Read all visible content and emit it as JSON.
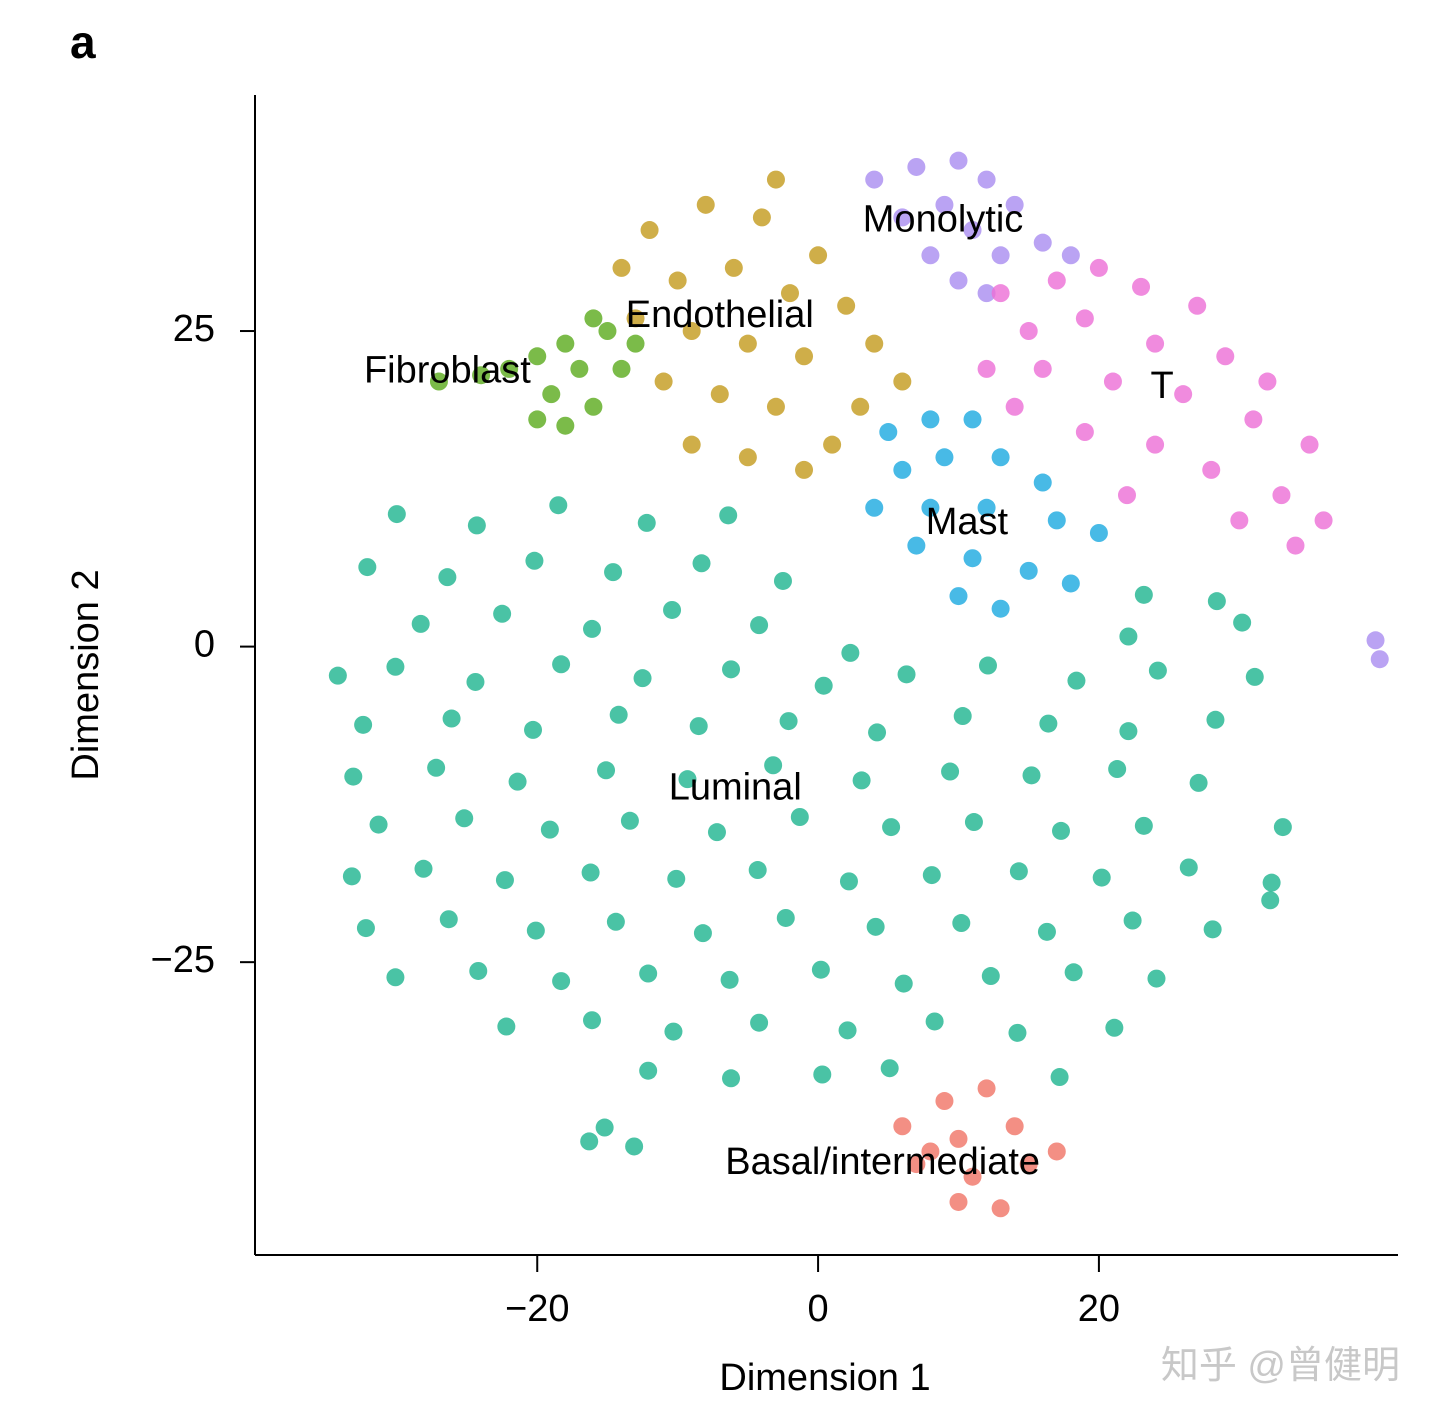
{
  "chart_data": {
    "type": "scatter",
    "panel_label": "a",
    "xlabel": "Dimension 1",
    "ylabel": "Dimension 2",
    "watermark": "知乎 @曾健明",
    "xlim": [
      -40.1,
      41.3
    ],
    "ylim": [
      -48.2,
      43.7
    ],
    "xticks": [
      {
        "value": -20,
        "label": "−20"
      },
      0,
      20
    ],
    "yticks": [
      {
        "value": -25,
        "label": "−25"
      },
      0,
      25
    ],
    "series": [
      {
        "name": "Luminal",
        "color": "#1db48e",
        "label_x": -5.9,
        "label_y": -11.3,
        "x": [
          -30,
          -24.3,
          -18.5,
          -12.2,
          -6.4,
          -32.1,
          -26.4,
          -20.2,
          -14.6,
          -8.3,
          -2.5,
          23.2,
          28.4,
          -28.3,
          -22.5,
          -16.1,
          -10.4,
          -4.2,
          2.3,
          22.1,
          30.2,
          -34.2,
          -30.1,
          -24.4,
          -18.3,
          -12.5,
          -6.2,
          0.4,
          6.3,
          12.1,
          18.4,
          24.2,
          31.1,
          -32.4,
          -26.1,
          -20.3,
          -14.2,
          -8.5,
          -2.1,
          4.2,
          10.3,
          16.4,
          22.1,
          28.3,
          -33.1,
          -27.2,
          -21.4,
          -15.1,
          -9.3,
          -3.2,
          3.1,
          9.4,
          15.2,
          21.3,
          27.1,
          -31.3,
          -25.2,
          -19.1,
          -13.4,
          -7.2,
          -1.3,
          5.2,
          11.1,
          17.3,
          23.2,
          -33.2,
          -28.1,
          -22.3,
          -16.2,
          -10.1,
          -4.3,
          2.2,
          8.1,
          14.3,
          20.2,
          26.4,
          32.3,
          -32.2,
          -26.3,
          -20.1,
          -14.4,
          -8.2,
          -2.3,
          4.1,
          10.2,
          16.3,
          22.4,
          28.1,
          -30.1,
          -24.2,
          -18.3,
          -12.1,
          -6.3,
          0.2,
          6.1,
          12.3,
          18.2,
          24.1,
          -22.2,
          -16.1,
          -10.3,
          -4.2,
          2.1,
          8.3,
          14.2,
          21.1,
          -12.1,
          -6.2,
          0.3,
          5.1,
          17.2,
          -15.2,
          -13.1,
          -16.3,
          33.1,
          32.2
        ],
        "y": [
          10.5,
          9.6,
          11.2,
          9.8,
          10.4,
          6.3,
          5.5,
          6.8,
          5.9,
          6.6,
          5.2,
          4.1,
          3.6,
          1.8,
          2.6,
          1.4,
          2.9,
          1.7,
          -0.5,
          0.8,
          1.9,
          -2.3,
          -1.6,
          -2.8,
          -1.4,
          -2.5,
          -1.8,
          -3.1,
          -2.2,
          -1.5,
          -2.7,
          -1.9,
          -2.4,
          -6.2,
          -5.7,
          -6.6,
          -5.4,
          -6.3,
          -5.9,
          -6.8,
          -5.5,
          -6.1,
          -6.7,
          -5.8,
          -10.3,
          -9.6,
          -10.7,
          -9.8,
          -10.5,
          -9.4,
          -10.6,
          -9.9,
          -10.2,
          -9.7,
          -10.8,
          -14.1,
          -13.6,
          -14.5,
          -13.8,
          -14.7,
          -13.5,
          -14.3,
          -13.9,
          -14.6,
          -14.2,
          -18.2,
          -17.6,
          -18.5,
          -17.9,
          -18.4,
          -17.7,
          -18.6,
          -18.1,
          -17.8,
          -18.3,
          -17.5,
          -18.7,
          -22.3,
          -21.6,
          -22.5,
          -21.8,
          -22.7,
          -21.5,
          -22.2,
          -21.9,
          -22.6,
          -21.7,
          -22.4,
          -26.2,
          -25.7,
          -26.5,
          -25.9,
          -26.4,
          -25.6,
          -26.7,
          -26.1,
          -25.8,
          -26.3,
          -30.1,
          -29.6,
          -30.5,
          -29.8,
          -30.4,
          -29.7,
          -30.6,
          -30.2,
          -33.6,
          -34.2,
          -33.9,
          -33.4,
          -34.1,
          -38.1,
          -39.6,
          -39.2,
          -14.3,
          -20.1
        ]
      },
      {
        "name": "Endothelial",
        "color": "#c39a1c",
        "label_x": -7,
        "label_y": 26.1,
        "x": [
          -12,
          -8,
          -4,
          0,
          -10,
          -6,
          -2,
          2,
          4,
          6,
          -13,
          -9,
          -5,
          -1,
          3,
          -11,
          -7,
          -3,
          1,
          -9,
          -5,
          -1,
          -14,
          -3
        ],
        "y": [
          33,
          35,
          34,
          31,
          29,
          30,
          28,
          27,
          24,
          21,
          26,
          25,
          24,
          23,
          19,
          21,
          20,
          19,
          16,
          16,
          15,
          14,
          30,
          37
        ]
      },
      {
        "name": "Fibroblast",
        "color": "#5aaa1c",
        "label_x": -26.4,
        "label_y": 21.7,
        "x": [
          -27,
          -24,
          -22,
          -20,
          -19,
          -18,
          -17,
          -16,
          -15,
          -14,
          -20,
          -16,
          -13,
          -18
        ],
        "y": [
          21,
          21.5,
          22,
          23,
          20,
          24,
          22,
          19,
          25,
          22,
          18,
          26,
          24,
          17.5
        ]
      },
      {
        "name": "Monolytic",
        "color": "#a98cf0",
        "label_x": 8.9,
        "label_y": 33.7,
        "x": [
          4,
          7,
          10,
          12,
          14,
          9,
          6,
          11,
          16,
          18,
          13,
          8,
          10,
          12,
          39.7,
          40
        ],
        "y": [
          37,
          38,
          38.5,
          37,
          35,
          35,
          34,
          33,
          32,
          31,
          31,
          31,
          29,
          28,
          0.5,
          -1
        ]
      },
      {
        "name": "T",
        "color": "#ec6ed6",
        "label_x": 24.5,
        "label_y": 20.5,
        "x": [
          13,
          17,
          20,
          23,
          27,
          15,
          19,
          24,
          29,
          32,
          12,
          16,
          21,
          26,
          31,
          35,
          14,
          19,
          24,
          28,
          33,
          36,
          22,
          30,
          34
        ],
        "y": [
          28,
          29,
          30,
          28.5,
          27,
          25,
          26,
          24,
          23,
          21,
          22,
          22,
          21,
          20,
          18,
          16,
          19,
          17,
          16,
          14,
          12,
          10,
          12,
          10,
          8
        ]
      },
      {
        "name": "Mast",
        "color": "#1aa9e0",
        "label_x": 10.6,
        "label_y": 9.7,
        "x": [
          5,
          8,
          11,
          6,
          9,
          13,
          16,
          4,
          8,
          12,
          17,
          20,
          7,
          11,
          15,
          10,
          13,
          18
        ],
        "y": [
          17,
          18,
          18,
          14,
          15,
          15,
          13,
          11,
          11,
          11,
          10,
          9,
          8,
          7,
          6,
          4,
          3,
          5
        ]
      },
      {
        "name": "Basal/intermediate",
        "color": "#f07365",
        "label_x": 4.6,
        "label_y": -41,
        "x": [
          6,
          9,
          12,
          10,
          14,
          17,
          7,
          11,
          15,
          10,
          13,
          8
        ],
        "y": [
          -38,
          -36,
          -35,
          -39,
          -38,
          -40,
          -41,
          -42,
          -41,
          -44,
          -44.5,
          -40
        ]
      }
    ]
  }
}
